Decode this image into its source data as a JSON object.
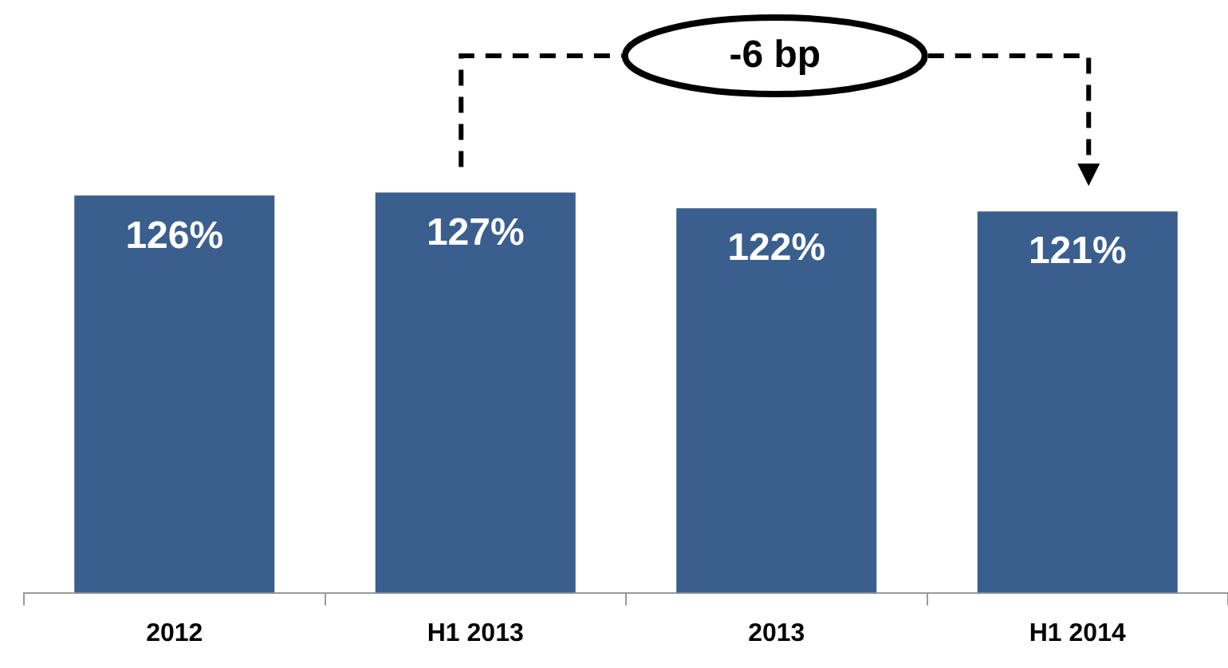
{
  "chart_data": {
    "type": "bar",
    "categories": [
      "2012",
      "H1 2013",
      "2013",
      "H1 2014"
    ],
    "values": [
      126,
      127,
      122,
      121
    ],
    "value_labels": [
      "126%",
      "127%",
      "122%",
      "121%"
    ],
    "color": "#3a5f8e",
    "annotations": [
      "-6 bp"
    ],
    "grid": false,
    "legend": false
  }
}
